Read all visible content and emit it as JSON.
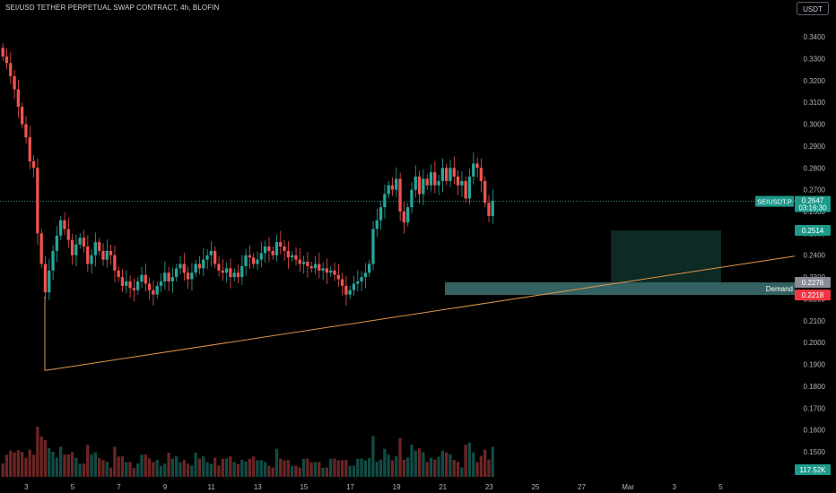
{
  "header": {
    "title": "SEI/USD TETHER PERPETUAL SWAP CONTRACT, 4h, BLOFIN",
    "currency_button": "USDT"
  },
  "colors": {
    "background": "#000000",
    "up": "#26a69a",
    "down": "#ef5350",
    "trendline": "#e0954a",
    "demand_zone": "#4a8a8a",
    "target_zone": "#0d2a24",
    "price_line": "#26a69a",
    "axis_text": "#b2b5be"
  },
  "chart_data": {
    "type": "candlestick",
    "title": "SEI/USD TETHER PERPETUAL SWAP CONTRACT, 4h, BLOFIN",
    "ylim": [
      0.1385,
      0.3495
    ],
    "y_ticks": [
      "0.3400",
      "0.3300",
      "0.3200",
      "0.3100",
      "0.3000",
      "0.2900",
      "0.2800",
      "0.2700",
      "0.2600",
      "0.2500",
      "0.2400",
      "0.2300",
      "0.2200",
      "0.2100",
      "0.2000",
      "0.1900",
      "0.1800",
      "0.1700",
      "0.1600",
      "0.1500"
    ],
    "x_ticks": [
      {
        "label": "3",
        "bar": 6
      },
      {
        "label": "5",
        "bar": 18
      },
      {
        "label": "7",
        "bar": 30
      },
      {
        "label": "9",
        "bar": 42
      },
      {
        "label": "11",
        "bar": 54
      },
      {
        "label": "13",
        "bar": 66
      },
      {
        "label": "15",
        "bar": 78
      },
      {
        "label": "17",
        "bar": 90
      },
      {
        "label": "19",
        "bar": 102
      },
      {
        "label": "21",
        "bar": 114
      },
      {
        "label": "23",
        "bar": 126
      },
      {
        "label": "25",
        "bar": 138
      },
      {
        "label": "27",
        "bar": 150
      },
      {
        "label": "Mar",
        "bar": 162
      },
      {
        "label": "3",
        "bar": 174
      },
      {
        "label": "5",
        "bar": 186
      }
    ],
    "closes": [
      0.331,
      0.328,
      0.322,
      0.316,
      0.308,
      0.3,
      0.294,
      0.283,
      0.28,
      0.25,
      0.236,
      0.223,
      0.233,
      0.242,
      0.249,
      0.256,
      0.252,
      0.247,
      0.24,
      0.245,
      0.248,
      0.244,
      0.236,
      0.24,
      0.246,
      0.242,
      0.238,
      0.242,
      0.24,
      0.233,
      0.23,
      0.226,
      0.228,
      0.225,
      0.224,
      0.228,
      0.231,
      0.227,
      0.224,
      0.222,
      0.226,
      0.228,
      0.232,
      0.228,
      0.23,
      0.234,
      0.236,
      0.232,
      0.229,
      0.232,
      0.236,
      0.234,
      0.238,
      0.24,
      0.242,
      0.236,
      0.233,
      0.232,
      0.234,
      0.23,
      0.232,
      0.23,
      0.235,
      0.24,
      0.239,
      0.236,
      0.238,
      0.241,
      0.244,
      0.242,
      0.24,
      0.246,
      0.244,
      0.242,
      0.239,
      0.24,
      0.238,
      0.236,
      0.237,
      0.235,
      0.234,
      0.236,
      0.233,
      0.234,
      0.232,
      0.233,
      0.231,
      0.229,
      0.226,
      0.222,
      0.224,
      0.227,
      0.228,
      0.23,
      0.232,
      0.236,
      0.252,
      0.256,
      0.262,
      0.268,
      0.272,
      0.27,
      0.275,
      0.26,
      0.255,
      0.262,
      0.27,
      0.276,
      0.268,
      0.275,
      0.272,
      0.278,
      0.272,
      0.274,
      0.28,
      0.274,
      0.28,
      0.276,
      0.272,
      0.274,
      0.266,
      0.276,
      0.282,
      0.28,
      0.274,
      0.264,
      0.258,
      0.265
    ],
    "demand_zone": {
      "label": "Demand",
      "top": 0.2276,
      "bottom": 0.2218
    },
    "target_zone": {
      "top": 0.2514,
      "bottom": 0.2276
    },
    "trendline": {
      "from": {
        "bar": 0,
        "price": 0.1872
      },
      "to": {
        "bar": 120,
        "price": 0.2396
      }
    },
    "last_price": {
      "label": "SEIUSDT.P",
      "value": "0.2647",
      "countdown": "03:16:30"
    },
    "price_labels": [
      "0.2514",
      "0.2276",
      "0.2218"
    ],
    "volume_label": "117.52K"
  }
}
